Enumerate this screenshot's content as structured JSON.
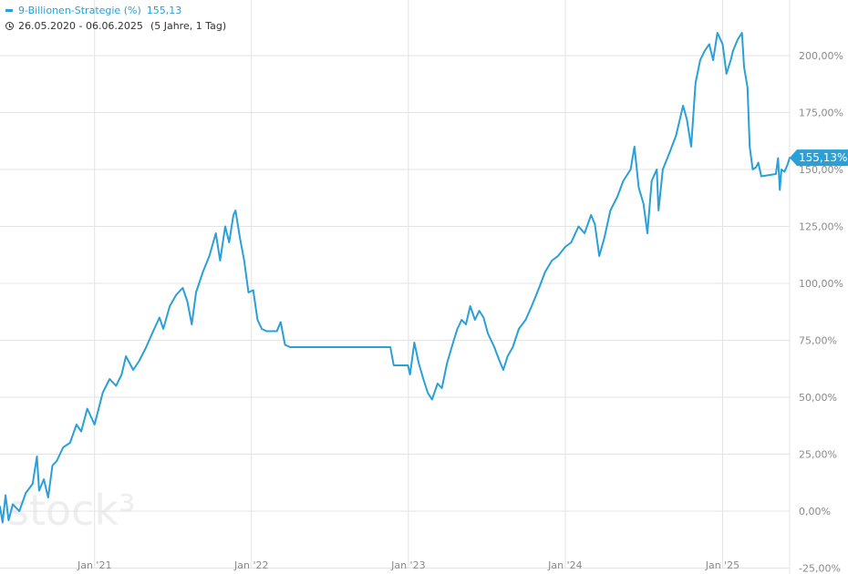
{
  "legend": {
    "series_label": "9-Billionen-Strategie (%)",
    "last_value": "155,13"
  },
  "range": {
    "dates": "26.05.2020 - 06.06.2025",
    "span": "(5 Jahre, 1 Tag)"
  },
  "badge": {
    "text": "155,13%"
  },
  "watermark": {
    "text": "stock³"
  },
  "colors": {
    "line": "#2a9fd8",
    "grid": "#e3e3e3",
    "axis_text": "#8a8a8a"
  },
  "chart_data": {
    "type": "line",
    "title": "",
    "xlabel": "",
    "ylabel": "",
    "grid": true,
    "y_axis_side": "right",
    "xlim": [
      "2020-05-26",
      "2025-06-06"
    ],
    "ylim": [
      -25,
      225
    ],
    "y_ticks": [
      -25,
      0,
      25,
      50,
      75,
      100,
      125,
      150,
      175,
      200
    ],
    "y_tick_labels": [
      "-25,00%",
      "0,00%",
      "25,00%",
      "50,00%",
      "75,00%",
      "100,00%",
      "125,00%",
      "150,00%",
      "175,00%",
      "200,00%"
    ],
    "x_ticks": [
      "2021-01-01",
      "2022-01-01",
      "2023-01-01",
      "2024-01-01",
      "2025-01-01"
    ],
    "x_tick_labels": [
      "Jan '21",
      "Jan '22",
      "Jan '23",
      "Jan '24",
      "Jan '25"
    ],
    "series": [
      {
        "name": "9-Billionen-Strategie (%)",
        "points": [
          [
            "2020-05-26",
            2
          ],
          [
            "2020-06-01",
            -5
          ],
          [
            "2020-06-08",
            7
          ],
          [
            "2020-06-15",
            -4
          ],
          [
            "2020-06-25",
            3
          ],
          [
            "2020-07-10",
            0
          ],
          [
            "2020-07-25",
            8
          ],
          [
            "2020-08-10",
            12
          ],
          [
            "2020-08-20",
            24
          ],
          [
            "2020-08-25",
            9
          ],
          [
            "2020-09-05",
            14
          ],
          [
            "2020-09-15",
            6
          ],
          [
            "2020-09-25",
            20
          ],
          [
            "2020-10-05",
            22
          ],
          [
            "2020-10-20",
            28
          ],
          [
            "2020-11-05",
            30
          ],
          [
            "2020-11-20",
            38
          ],
          [
            "2020-12-01",
            35
          ],
          [
            "2020-12-15",
            45
          ],
          [
            "2021-01-01",
            38
          ],
          [
            "2021-01-20",
            52
          ],
          [
            "2021-02-05",
            58
          ],
          [
            "2021-02-20",
            55
          ],
          [
            "2021-03-05",
            60
          ],
          [
            "2021-03-15",
            68
          ],
          [
            "2021-04-01",
            62
          ],
          [
            "2021-04-15",
            66
          ],
          [
            "2021-05-01",
            72
          ],
          [
            "2021-05-15",
            78
          ],
          [
            "2021-06-01",
            85
          ],
          [
            "2021-06-10",
            80
          ],
          [
            "2021-06-25",
            90
          ],
          [
            "2021-07-10",
            95
          ],
          [
            "2021-07-25",
            98
          ],
          [
            "2021-08-05",
            92
          ],
          [
            "2021-08-15",
            82
          ],
          [
            "2021-08-25",
            96
          ],
          [
            "2021-09-10",
            105
          ],
          [
            "2021-09-25",
            112
          ],
          [
            "2021-10-10",
            122
          ],
          [
            "2021-10-20",
            110
          ],
          [
            "2021-11-01",
            125
          ],
          [
            "2021-11-10",
            118
          ],
          [
            "2021-11-20",
            130
          ],
          [
            "2021-11-25",
            132
          ],
          [
            "2021-12-05",
            120
          ],
          [
            "2021-12-15",
            110
          ],
          [
            "2021-12-25",
            96
          ],
          [
            "2022-01-05",
            97
          ],
          [
            "2022-01-15",
            84
          ],
          [
            "2022-01-25",
            80
          ],
          [
            "2022-02-05",
            79
          ],
          [
            "2022-03-01",
            79
          ],
          [
            "2022-03-10",
            83
          ],
          [
            "2022-03-20",
            73
          ],
          [
            "2022-04-01",
            72
          ],
          [
            "2022-11-20",
            72
          ],
          [
            "2022-11-28",
            64
          ],
          [
            "2022-12-31",
            64
          ],
          [
            "2023-01-05",
            60
          ],
          [
            "2023-01-15",
            74
          ],
          [
            "2023-01-25",
            65
          ],
          [
            "2023-02-05",
            58
          ],
          [
            "2023-02-15",
            52
          ],
          [
            "2023-02-25",
            49
          ],
          [
            "2023-03-10",
            56
          ],
          [
            "2023-03-20",
            54
          ],
          [
            "2023-04-01",
            65
          ],
          [
            "2023-04-15",
            74
          ],
          [
            "2023-04-25",
            80
          ],
          [
            "2023-05-05",
            84
          ],
          [
            "2023-05-15",
            82
          ],
          [
            "2023-05-25",
            90
          ],
          [
            "2023-06-05",
            84
          ],
          [
            "2023-06-15",
            88
          ],
          [
            "2023-06-25",
            85
          ],
          [
            "2023-07-05",
            78
          ],
          [
            "2023-07-20",
            72
          ],
          [
            "2023-08-01",
            66
          ],
          [
            "2023-08-10",
            62
          ],
          [
            "2023-08-20",
            68
          ],
          [
            "2023-09-01",
            72
          ],
          [
            "2023-09-15",
            80
          ],
          [
            "2023-10-01",
            84
          ],
          [
            "2023-10-15",
            90
          ],
          [
            "2023-11-01",
            98
          ],
          [
            "2023-11-15",
            105
          ],
          [
            "2023-12-01",
            110
          ],
          [
            "2023-12-15",
            112
          ],
          [
            "2024-01-01",
            116
          ],
          [
            "2024-01-15",
            118
          ],
          [
            "2024-02-01",
            125
          ],
          [
            "2024-02-15",
            122
          ],
          [
            "2024-03-01",
            130
          ],
          [
            "2024-03-10",
            126
          ],
          [
            "2024-03-20",
            112
          ],
          [
            "2024-04-01",
            120
          ],
          [
            "2024-04-15",
            132
          ],
          [
            "2024-05-01",
            138
          ],
          [
            "2024-05-15",
            145
          ],
          [
            "2024-06-01",
            150
          ],
          [
            "2024-06-10",
            160
          ],
          [
            "2024-06-20",
            142
          ],
          [
            "2024-07-01",
            135
          ],
          [
            "2024-07-10",
            122
          ],
          [
            "2024-07-20",
            145
          ],
          [
            "2024-08-01",
            150
          ],
          [
            "2024-08-05",
            132
          ],
          [
            "2024-08-15",
            150
          ],
          [
            "2024-09-01",
            158
          ],
          [
            "2024-09-15",
            165
          ],
          [
            "2024-10-01",
            178
          ],
          [
            "2024-10-10",
            172
          ],
          [
            "2024-10-20",
            160
          ],
          [
            "2024-10-30",
            188
          ],
          [
            "2024-11-10",
            198
          ],
          [
            "2024-11-20",
            202
          ],
          [
            "2024-12-01",
            205
          ],
          [
            "2024-12-10",
            198
          ],
          [
            "2024-12-20",
            210
          ],
          [
            "2025-01-01",
            205
          ],
          [
            "2025-01-10",
            192
          ],
          [
            "2025-01-20",
            198
          ],
          [
            "2025-01-25",
            202
          ],
          [
            "2025-02-05",
            207
          ],
          [
            "2025-02-15",
            210
          ],
          [
            "2025-02-20",
            195
          ],
          [
            "2025-02-28",
            186
          ],
          [
            "2025-03-05",
            160
          ],
          [
            "2025-03-12",
            150
          ],
          [
            "2025-03-20",
            151
          ],
          [
            "2025-03-25",
            153
          ],
          [
            "2025-04-01",
            147
          ],
          [
            "2025-05-05",
            148
          ],
          [
            "2025-05-10",
            155
          ],
          [
            "2025-05-14",
            141
          ],
          [
            "2025-05-18",
            150
          ],
          [
            "2025-05-25",
            149
          ],
          [
            "2025-06-01",
            152
          ],
          [
            "2025-06-06",
            155.13
          ]
        ]
      }
    ]
  }
}
